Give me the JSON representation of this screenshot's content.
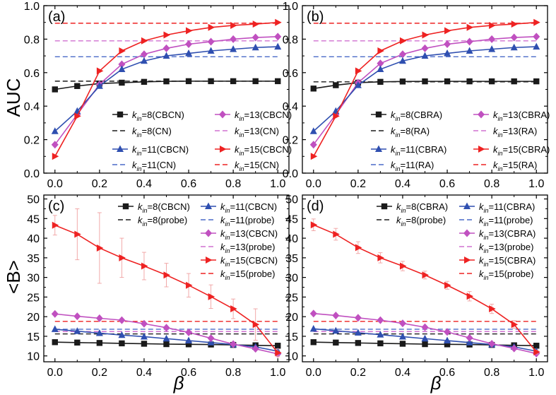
{
  "figure": {
    "xlabel": "β",
    "ylabel_top": "AUC",
    "ylabel_bottom": "<B>"
  },
  "chart_data": [
    {
      "panel": "(a)",
      "type": "line",
      "xlim": [
        -0.05,
        1.05
      ],
      "ylim": [
        0.0,
        1.0
      ],
      "xticks": [
        0.0,
        0.2,
        0.4,
        0.6,
        0.8,
        1.0
      ],
      "yticks": [
        0.0,
        0.2,
        0.4,
        0.6,
        0.8,
        1.0
      ],
      "xticklabels": [
        "0.0",
        "0.2",
        "0.4",
        "0.6",
        "0.8",
        "1.0"
      ],
      "yticklabels": [
        "0.0",
        "0.2",
        "0.4",
        "0.6",
        "0.8",
        "1.0"
      ],
      "legend_position": "bottom-right",
      "legend_columns": 2,
      "legend_layout": "row-major",
      "x": [
        0.0,
        0.1,
        0.2,
        0.3,
        0.4,
        0.5,
        0.6,
        0.7,
        0.8,
        0.9,
        1.0
      ],
      "series": [
        {
          "name": "k_in=8(CBCN)",
          "sub": "in",
          "label": "=8(CBCN)",
          "color": "#1a1a1a",
          "marker": "square",
          "style": "solid",
          "values": [
            0.5,
            0.52,
            0.535,
            0.54,
            0.545,
            0.548,
            0.549,
            0.549,
            0.549,
            0.549,
            0.549
          ]
        },
        {
          "name": "k_in=13(CBCN)",
          "sub": "in",
          "label": "=13(CBCN)",
          "color": "#c050c0",
          "marker": "diamond",
          "style": "solid",
          "values": [
            0.17,
            0.35,
            0.53,
            0.65,
            0.71,
            0.745,
            0.77,
            0.785,
            0.8,
            0.81,
            0.815
          ]
        },
        {
          "name": "k_in=8(CN)",
          "sub": "in",
          "label": "=8(CN)",
          "color": "#1a1a1a",
          "style": "dashed",
          "constant": 0.549
        },
        {
          "name": "k_in=13(CN)",
          "sub": "in",
          "label": "=13(CN)",
          "color": "#d070d0",
          "style": "dashed",
          "constant": 0.79
        },
        {
          "name": "k_in=11(CBCN)",
          "sub": "in",
          "label": "=11(CBCN)",
          "color": "#2f4fb0",
          "marker": "triangle",
          "style": "solid",
          "values": [
            0.25,
            0.37,
            0.52,
            0.62,
            0.67,
            0.7,
            0.715,
            0.73,
            0.74,
            0.75,
            0.755
          ]
        },
        {
          "name": "k_in=15(CBCN)",
          "sub": "in",
          "label": "=15(CBCN)",
          "color": "#ee2222",
          "marker": "tri-right",
          "style": "solid",
          "values": [
            0.1,
            0.34,
            0.61,
            0.73,
            0.79,
            0.825,
            0.85,
            0.87,
            0.882,
            0.89,
            0.9
          ]
        },
        {
          "name": "k_in=11(CN)",
          "sub": "in",
          "label": "=11(CN)",
          "color": "#4a6ac8",
          "style": "dashed",
          "constant": 0.695
        },
        {
          "name": "k_in=15(CN)",
          "sub": "in",
          "label": "=15(CN)",
          "color": "#ee2222",
          "style": "dashed",
          "constant": 0.895
        }
      ]
    },
    {
      "panel": "(b)",
      "type": "line",
      "xlim": [
        -0.05,
        1.05
      ],
      "ylim": [
        0.0,
        1.0
      ],
      "xticks": [
        0.0,
        0.2,
        0.4,
        0.6,
        0.8,
        1.0
      ],
      "yticks": [
        0.0,
        0.2,
        0.4,
        0.6,
        0.8,
        1.0
      ],
      "xticklabels": [
        "0.0",
        "0.2",
        "0.4",
        "0.6",
        "0.8",
        "1.0"
      ],
      "yticklabels": [
        "0.0",
        "0.2",
        "0.4",
        "0.6",
        "0.8",
        "1.0"
      ],
      "legend_position": "bottom-right",
      "legend_columns": 2,
      "legend_layout": "row-major",
      "x": [
        0.0,
        0.1,
        0.2,
        0.3,
        0.4,
        0.5,
        0.6,
        0.7,
        0.8,
        0.9,
        1.0
      ],
      "series": [
        {
          "name": "k_in=8(CBRA)",
          "sub": "in",
          "label": "=8(CBRA)",
          "color": "#1a1a1a",
          "marker": "square",
          "style": "solid",
          "values": [
            0.505,
            0.525,
            0.54,
            0.545,
            0.547,
            0.548,
            0.548,
            0.548,
            0.548,
            0.548,
            0.548
          ]
        },
        {
          "name": "k_in=13(CBRA)",
          "sub": "in",
          "label": "=13(CBRA)",
          "color": "#c050c0",
          "marker": "diamond",
          "style": "solid",
          "values": [
            0.17,
            0.35,
            0.54,
            0.655,
            0.71,
            0.745,
            0.77,
            0.785,
            0.8,
            0.81,
            0.815
          ]
        },
        {
          "name": "k_in=8(RA)",
          "sub": "in",
          "label": "=8(RA)",
          "color": "#1a1a1a",
          "style": "dashed",
          "constant": 0.545
        },
        {
          "name": "k_in=13(RA)",
          "sub": "in",
          "label": "=13(RA)",
          "color": "#d070d0",
          "style": "dashed",
          "constant": 0.79
        },
        {
          "name": "k_in=11(CBRA)",
          "sub": "in",
          "label": "=11(CBRA)",
          "color": "#2f4fb0",
          "marker": "triangle",
          "style": "solid",
          "values": [
            0.25,
            0.37,
            0.525,
            0.62,
            0.67,
            0.7,
            0.715,
            0.73,
            0.74,
            0.75,
            0.755
          ]
        },
        {
          "name": "k_in=15(CBRA)",
          "sub": "in",
          "label": "=15(CBRA)",
          "color": "#ee2222",
          "marker": "tri-right",
          "style": "solid",
          "values": [
            0.1,
            0.34,
            0.61,
            0.73,
            0.79,
            0.825,
            0.85,
            0.87,
            0.882,
            0.89,
            0.9
          ]
        },
        {
          "name": "k_in=11(RA)",
          "sub": "in",
          "label": "=11(RA)",
          "color": "#4a6ac8",
          "style": "dashed",
          "constant": 0.695
        },
        {
          "name": "k_in=15(RA)",
          "sub": "in",
          "label": "=15(RA)",
          "color": "#ee2222",
          "style": "dashed",
          "constant": 0.895
        }
      ]
    },
    {
      "panel": "(c)",
      "type": "line",
      "xlim": [
        -0.05,
        1.05
      ],
      "ylim": [
        8.5,
        51
      ],
      "xticks": [
        0.0,
        0.2,
        0.4,
        0.6,
        0.8,
        1.0
      ],
      "yticks": [
        10,
        15,
        20,
        25,
        30,
        35,
        40,
        45,
        50
      ],
      "xticklabels": [
        "0.0",
        "0.2",
        "0.4",
        "0.6",
        "0.8",
        "1.0"
      ],
      "yticklabels": [
        "10",
        "15",
        "20",
        "25",
        "30",
        "35",
        "40",
        "45",
        "50"
      ],
      "legend_position": "top-right",
      "legend_columns": 2,
      "legend_layout": "grid",
      "x": [
        0.0,
        0.1,
        0.2,
        0.3,
        0.4,
        0.5,
        0.6,
        0.7,
        0.8,
        0.9,
        1.0
      ],
      "series": [
        {
          "name": "k_in=8(CBCN)",
          "sub": "in",
          "label": "=8(CBCN)",
          "color": "#1a1a1a",
          "marker": "square",
          "style": "solid",
          "legend_cell": [
            0,
            0
          ],
          "values": [
            13.5,
            13.4,
            13.3,
            13.2,
            13.1,
            13.0,
            12.95,
            12.9,
            12.8,
            12.7,
            12.6
          ]
        },
        {
          "name": "k_in=8(probe)",
          "sub": "in",
          "label": "=8(probe)",
          "color": "#1a1a1a",
          "style": "dashed",
          "legend_cell": [
            0,
            1
          ],
          "constant": 15.6
        },
        {
          "name": "k_in=11(CBCN)",
          "sub": "in",
          "label": "=11(CBCN)",
          "color": "#2f4fb0",
          "marker": "triangle",
          "style": "solid",
          "legend_cell": [
            1,
            0
          ],
          "values": [
            16.8,
            16.3,
            15.8,
            15.3,
            14.9,
            14.4,
            13.9,
            13.4,
            12.9,
            12.3,
            11.2
          ]
        },
        {
          "name": "k_in=11(probe)",
          "sub": "in",
          "label": "=11(probe)",
          "color": "#4a6ac8",
          "style": "dashed",
          "legend_cell": [
            1,
            1
          ],
          "constant": 16.8
        },
        {
          "name": "k_in=13(CBCN)",
          "sub": "in",
          "label": "=13(CBCN)",
          "color": "#c050c0",
          "marker": "diamond",
          "style": "solid",
          "legend_cell": [
            1,
            2
          ],
          "values": [
            20.7,
            20.1,
            19.6,
            19.1,
            18.2,
            17.2,
            16.0,
            14.5,
            13.0,
            11.8,
            10.5
          ]
        },
        {
          "name": "k_in=13(probe)",
          "sub": "in",
          "label": "=13(probe)",
          "color": "#d070d0",
          "style": "dashed",
          "legend_cell": [
            1,
            3
          ],
          "constant": 16.2
        },
        {
          "name": "k_in=15(CBCN)",
          "sub": "in",
          "label": "=15(CBCN)",
          "color": "#ee2222",
          "marker": "tri-right",
          "style": "solid",
          "legend_cell": [
            1,
            4
          ],
          "values": [
            43.3,
            41.0,
            37.5,
            35.0,
            32.9,
            30.6,
            28.0,
            25.1,
            22.0,
            18.0,
            10.8
          ],
          "errors": [
            2.5,
            6.5,
            9.0,
            5.0,
            3.5,
            3.0,
            3.0,
            3.0,
            2.5,
            4.0,
            1.0
          ]
        },
        {
          "name": "k_in=15(probe)",
          "sub": "in",
          "label": "=15(probe)",
          "color": "#ee2222",
          "style": "dashed",
          "legend_cell": [
            1,
            5
          ],
          "constant": 18.8
        }
      ]
    },
    {
      "panel": "(d)",
      "type": "line",
      "xlim": [
        -0.05,
        1.05
      ],
      "ylim": [
        8.5,
        51
      ],
      "xticks": [
        0.0,
        0.2,
        0.4,
        0.6,
        0.8,
        1.0
      ],
      "yticks": [
        10,
        15,
        20,
        25,
        30,
        35,
        40,
        45,
        50
      ],
      "xticklabels": [
        "0.0",
        "0.2",
        "0.4",
        "0.6",
        "0.8",
        "1.0"
      ],
      "yticklabels": [
        "10",
        "15",
        "20",
        "25",
        "30",
        "35",
        "40",
        "45",
        "50"
      ],
      "legend_position": "top-right",
      "legend_columns": 2,
      "legend_layout": "grid",
      "x": [
        0.0,
        0.1,
        0.2,
        0.3,
        0.4,
        0.5,
        0.6,
        0.7,
        0.8,
        0.9,
        1.0
      ],
      "series": [
        {
          "name": "k_in=8(CBRA)",
          "sub": "in",
          "label": "=8(CBRA)",
          "color": "#1a1a1a",
          "marker": "square",
          "style": "solid",
          "legend_cell": [
            0,
            0
          ],
          "values": [
            13.5,
            13.4,
            13.3,
            13.2,
            13.1,
            13.0,
            12.95,
            12.9,
            12.8,
            12.7,
            12.6
          ]
        },
        {
          "name": "k_in=8(probe)",
          "sub": "in",
          "label": "=8(probe)",
          "color": "#1a1a1a",
          "style": "dashed",
          "legend_cell": [
            0,
            1
          ],
          "constant": 15.6
        },
        {
          "name": "k_in=11(CBRA)",
          "sub": "in",
          "label": "=11(CBRA)",
          "color": "#2f4fb0",
          "marker": "triangle",
          "style": "solid",
          "legend_cell": [
            1,
            0
          ],
          "values": [
            16.9,
            16.4,
            15.9,
            15.4,
            14.9,
            14.4,
            13.9,
            13.4,
            12.9,
            12.3,
            11.2
          ]
        },
        {
          "name": "k_in=11(probe)",
          "sub": "in",
          "label": "=11(probe)",
          "color": "#4a6ac8",
          "style": "dashed",
          "legend_cell": [
            1,
            1
          ],
          "constant": 16.8
        },
        {
          "name": "k_in=13(CBRA)",
          "sub": "in",
          "label": "=13(CBRA)",
          "color": "#c050c0",
          "marker": "diamond",
          "style": "solid",
          "legend_cell": [
            1,
            2
          ],
          "values": [
            20.8,
            20.3,
            19.7,
            19.1,
            18.3,
            17.3,
            16.1,
            14.6,
            13.1,
            11.9,
            10.6
          ]
        },
        {
          "name": "k_in=13(probe)",
          "sub": "in",
          "label": "=13(probe)",
          "color": "#d070d0",
          "style": "dashed",
          "legend_cell": [
            1,
            3
          ],
          "constant": 16.2
        },
        {
          "name": "k_in=15(CBRA)",
          "sub": "in",
          "label": "=15(CBRA)",
          "color": "#ee2222",
          "marker": "tri-right",
          "style": "solid",
          "legend_cell": [
            1,
            4
          ],
          "values": [
            43.4,
            41.0,
            37.6,
            35.0,
            32.9,
            30.6,
            28.0,
            25.2,
            22.0,
            18.0,
            11.0
          ],
          "errors": [
            1.5,
            1.5,
            1.5,
            1.3,
            1.2,
            1.0,
            1.0,
            1.2,
            1.2,
            1.0,
            0.5
          ]
        },
        {
          "name": "k_in=15(probe)",
          "sub": "in",
          "label": "=15(probe)",
          "color": "#ee2222",
          "style": "dashed",
          "legend_cell": [
            1,
            5
          ],
          "constant": 18.8
        }
      ]
    }
  ]
}
